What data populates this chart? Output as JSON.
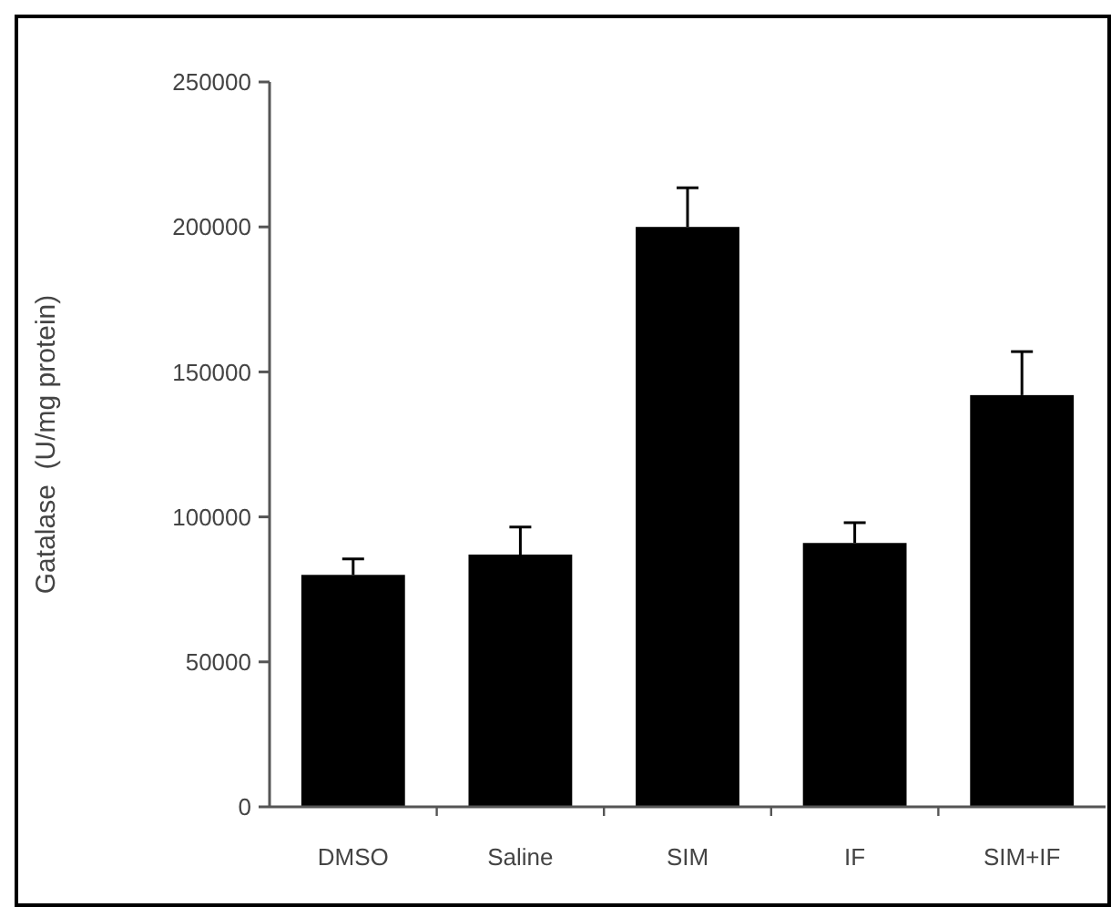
{
  "chart_data": {
    "type": "bar",
    "ylabel": "Gatalase  (U/mg protein)",
    "categories": [
      "DMSO",
      "Saline",
      "SIM",
      "IF",
      "SIM+IF"
    ],
    "values": [
      80000,
      87000,
      200000,
      91000,
      142000
    ],
    "errors": [
      5500,
      9500,
      13500,
      7000,
      15000
    ],
    "color": "#000000",
    "ylim": [
      0,
      250000
    ],
    "yticks": [
      0,
      50000,
      100000,
      150000,
      200000,
      250000
    ],
    "grid": false
  }
}
